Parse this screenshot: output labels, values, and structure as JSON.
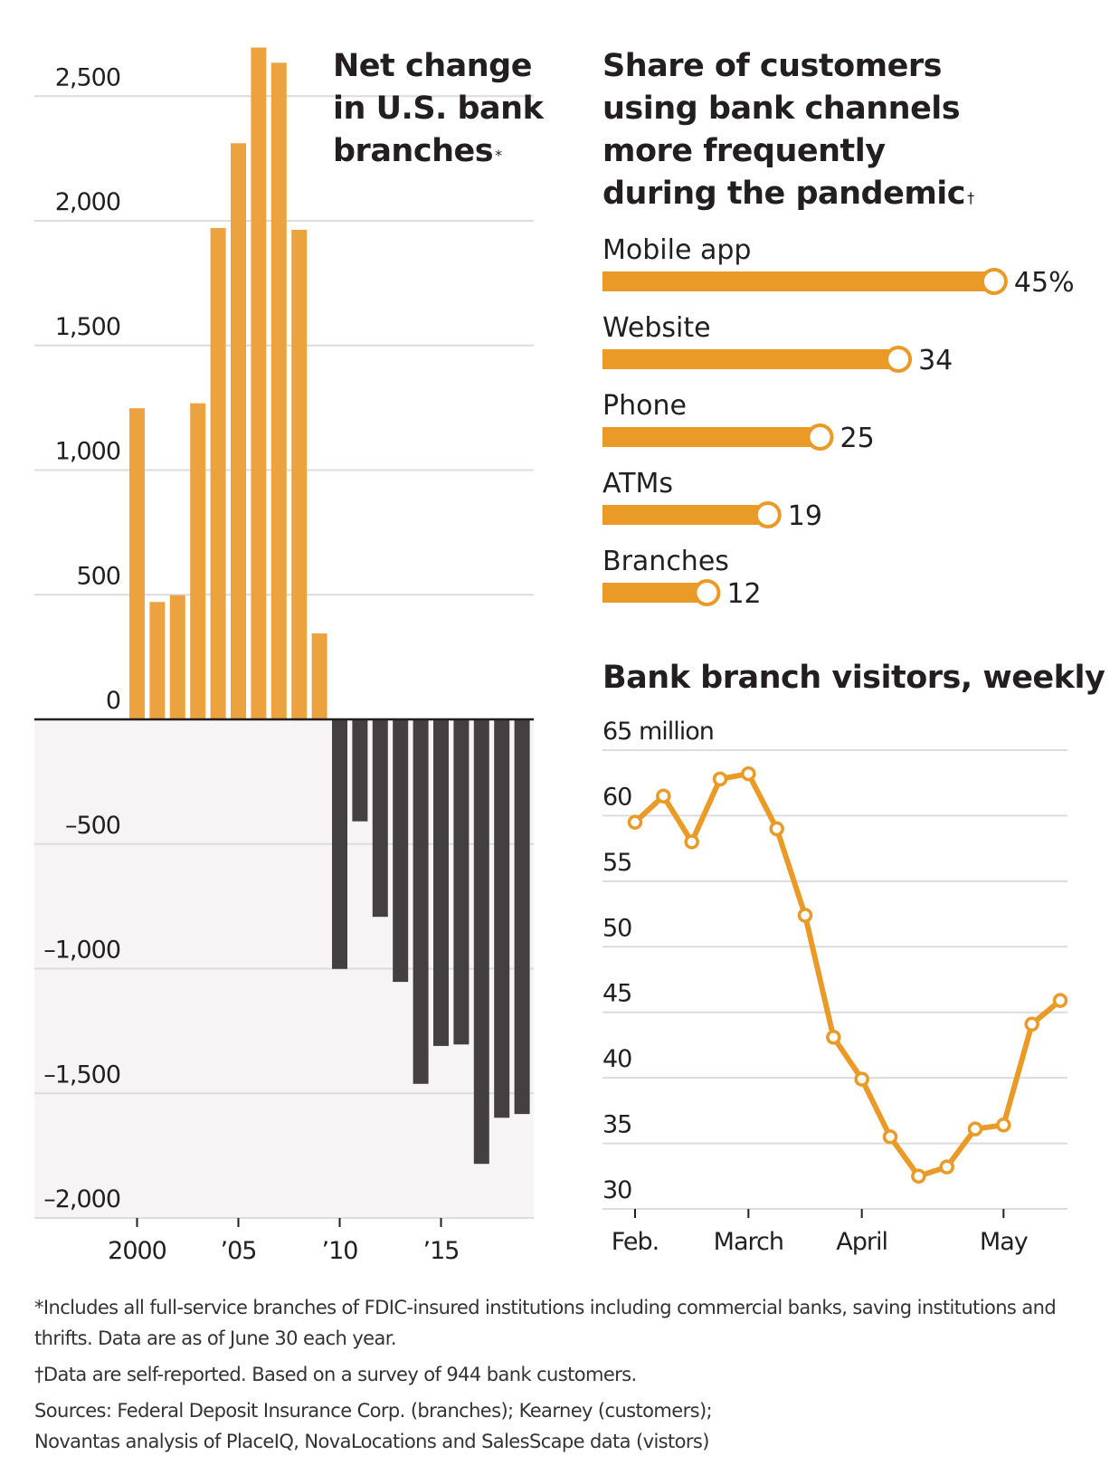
{
  "chart_data": [
    {
      "id": "branches",
      "type": "bar",
      "title": "Net change in U.S. bank branches",
      "title_lines": [
        "Net change",
        "in U.S. bank",
        "branches"
      ],
      "title_mark": "*",
      "xlabel": "",
      "ylabel": "",
      "categories": [
        "2000",
        "2001",
        "2002",
        "2003",
        "2004",
        "2005",
        "2006",
        "2007",
        "2008",
        "2009",
        "2010",
        "2011",
        "2012",
        "2013",
        "2014",
        "2015",
        "2016",
        "2017",
        "2018",
        "2019"
      ],
      "values": [
        1248,
        471,
        498,
        1268,
        1971,
        2311,
        2695,
        2634,
        1964,
        345,
        -1001,
        -409,
        -792,
        -1053,
        -1462,
        -1310,
        -1304,
        -1783,
        -1598,
        -1583
      ],
      "ylim": [
        -2000,
        2700
      ],
      "yticks": [
        2500,
        2000,
        1500,
        1000,
        500,
        0,
        -500,
        -1000,
        -1500,
        -2000
      ],
      "ytick_labels": [
        "2,500",
        "2,000",
        "1,500",
        "1,000",
        "500",
        "0",
        "–500",
        "–1,000",
        "–1,500",
        "–2,000"
      ],
      "xticks": [
        "2000",
        "2005",
        "2010",
        "2015"
      ],
      "xtick_labels": [
        "2000",
        "’05",
        "’10",
        "’15"
      ],
      "grid": true,
      "colors": {
        "positive": "#EBA23F",
        "negative": "#444041",
        "negative_zone": "#F6F4F5"
      }
    },
    {
      "id": "channels",
      "type": "bar",
      "orientation": "horizontal",
      "title": "Share of customers using bank channels more frequently during the pandemic",
      "title_lines": [
        "Share of customers",
        "using bank channels",
        "more frequently",
        "during the pandemic"
      ],
      "title_mark": "†",
      "categories": [
        "Mobile app",
        "Website",
        "Phone",
        "ATMs",
        "Branches"
      ],
      "values": [
        45,
        34,
        25,
        19,
        12
      ],
      "value_labels": [
        "45%",
        "34",
        "25",
        "19",
        "12"
      ],
      "unit": "%",
      "xlim": [
        0,
        45
      ],
      "colors": {
        "bar": "#E99A27"
      }
    },
    {
      "id": "visitors",
      "type": "line",
      "title": "Bank branch visitors, weekly",
      "ylabel": "",
      "y_unit_label": "65 million",
      "x": [
        "w1",
        "w2",
        "w3",
        "w4",
        "w5",
        "w6",
        "w7",
        "w8",
        "w9",
        "w10",
        "w11",
        "w12",
        "w13",
        "w14",
        "w15",
        "w16"
      ],
      "series": [
        {
          "name": "Weekly visitors (millions)",
          "values": [
            59.5,
            61.5,
            58.0,
            62.8,
            63.2,
            59.0,
            52.4,
            43.1,
            39.9,
            35.5,
            32.5,
            33.2,
            36.1,
            36.4,
            44.1,
            45.9
          ]
        }
      ],
      "ylim": [
        30,
        65
      ],
      "yticks": [
        65,
        60,
        55,
        50,
        45,
        40,
        35,
        30
      ],
      "ytick_labels": [
        "65 million",
        "60",
        "55",
        "50",
        "45",
        "40",
        "35",
        "30"
      ],
      "xtick_labels": [
        "Feb.",
        "March",
        "April",
        "May"
      ],
      "xtick_index": [
        0,
        4,
        8,
        13
      ],
      "grid": true,
      "colors": {
        "line": "#E99A27"
      }
    }
  ],
  "notes": {
    "footnote_1": "*Includes all full-service branches of FDIC-insured institutions including commercial banks, saving institutions and thrifts. Data are as of June 30 each year.",
    "footnote_2": "†Data are self-reported. Based on a survey of 944 bank customers.",
    "sources_1": "Sources: Federal Deposit Insurance Corp. (branches); Kearney (customers);",
    "sources_2": "Novantas analysis of PlaceIQ, NovaLocations and SalesScape data (vistors)"
  }
}
